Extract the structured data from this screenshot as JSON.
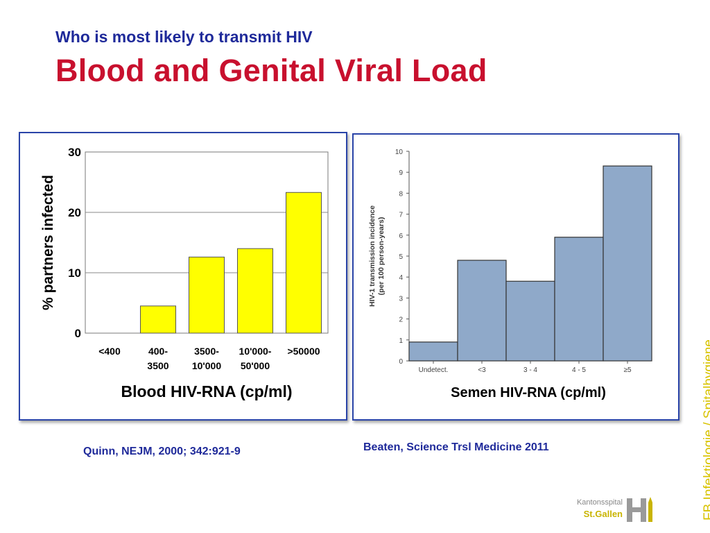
{
  "header": {
    "subtitle": "Who is most likely to transmit HIV",
    "title": "Blood and Genital Viral Load"
  },
  "colors": {
    "subtitle": "#1f2a9a",
    "title": "#c8102e",
    "chart1_bar": "#ffff00",
    "chart2_bar": "#8fa9c9",
    "sidebar_text": "#d8c300"
  },
  "chart_data": [
    {
      "type": "bar",
      "categories": [
        [
          "<400"
        ],
        [
          "400-",
          "3500"
        ],
        [
          "3500-",
          "10'000"
        ],
        [
          "10'000-",
          "50'000"
        ],
        [
          ">50000"
        ]
      ],
      "values": [
        0,
        4.5,
        12.6,
        14.0,
        23.3
      ],
      "ylabel": "% partners infected",
      "xlabel": "Blood HIV-RNA (cp/ml)",
      "ylim": [
        0,
        30
      ],
      "yticks": [
        0,
        10,
        20,
        30
      ],
      "grid": true
    },
    {
      "type": "bar",
      "categories": [
        "Undetect.",
        "<3",
        "3 - 4",
        "4 - 5",
        "≥5"
      ],
      "values": [
        0.9,
        4.8,
        3.8,
        5.9,
        9.3
      ],
      "ylabel_lines": [
        "HIV-1 transmission incidence",
        "(per 100 person-years)"
      ],
      "xlabel": "Semen HIV-RNA (cp/ml)",
      "ylim": [
        0,
        10
      ],
      "yticks": [
        0,
        1,
        2,
        3,
        4,
        5,
        6,
        7,
        8,
        9,
        10
      ],
      "grid": false
    }
  ],
  "citations": {
    "left": "Quinn, NEJM, 2000; 342:921-9",
    "right": "Beaten, Science Trsl Medicine 2011"
  },
  "sidebar": "FB Infektiologie / Spitalhygiene",
  "logo": {
    "line1": "Kantonsspital",
    "line2": "St.Gallen"
  }
}
